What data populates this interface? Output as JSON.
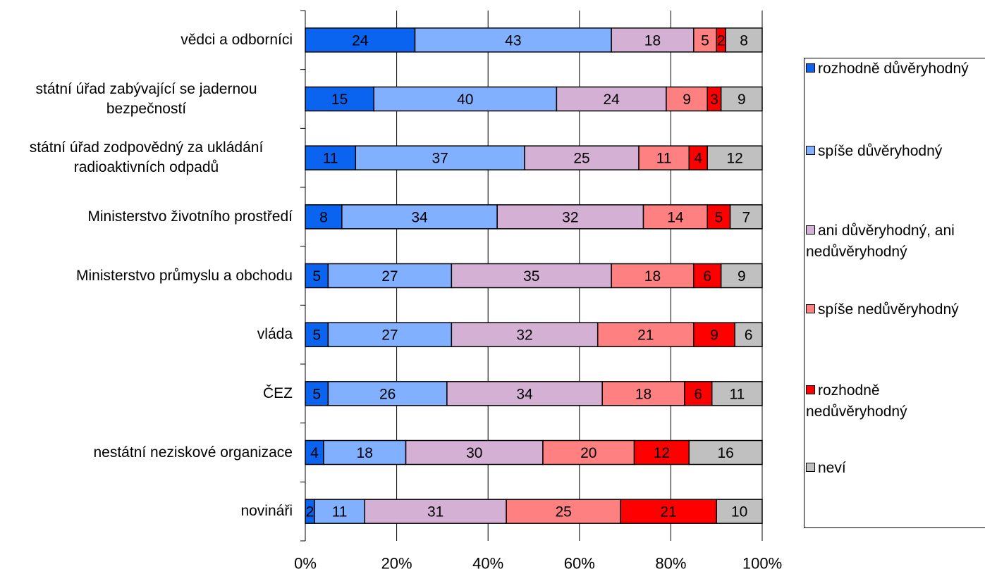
{
  "chart_data": {
    "type": "stacked_bar_horizontal",
    "categories": [
      "vědci a odborníci",
      "státní úřad zabývající se jadernou bezpečností",
      "státní úřad zodpovědný za ukládání radioaktivních odpadů",
      "Ministerstvo životního prostředí",
      "Ministerstvo průmyslu a obchodu",
      "vláda",
      "ČEZ",
      "nestátní neziskové organizace",
      "novináři"
    ],
    "series": [
      {
        "name": "rozhodně důvěryhodný",
        "color": "#0a64f0",
        "values": [
          24,
          15,
          11,
          8,
          5,
          5,
          5,
          4,
          2
        ]
      },
      {
        "name": "spíše důvěryhodný",
        "color": "#80b0ff",
        "values": [
          43,
          40,
          37,
          34,
          27,
          27,
          26,
          18,
          11
        ]
      },
      {
        "name": "ani důvěryhodný, ani nedůvěryhodný",
        "color": "#d4b0d4",
        "values": [
          18,
          24,
          25,
          32,
          35,
          32,
          34,
          30,
          31
        ]
      },
      {
        "name": "spíše nedůvěryhodný",
        "color": "#ff8080",
        "values": [
          5,
          9,
          11,
          14,
          18,
          21,
          18,
          20,
          25
        ]
      },
      {
        "name": "rozhodně nedůvěryhodný",
        "color": "#ff0000",
        "values": [
          2,
          3,
          4,
          5,
          6,
          9,
          6,
          12,
          21
        ]
      },
      {
        "name": "neví",
        "color": "#c0c0c0",
        "values": [
          8,
          9,
          12,
          7,
          9,
          6,
          11,
          16,
          10
        ]
      }
    ],
    "xlim": [
      0,
      100
    ],
    "xticks": [
      {
        "value": 0,
        "label": "0%"
      },
      {
        "value": 20,
        "label": "20%"
      },
      {
        "value": 40,
        "label": "40%"
      },
      {
        "value": 60,
        "label": "60%"
      },
      {
        "value": 80,
        "label": "80%"
      },
      {
        "value": 100,
        "label": "100%"
      }
    ],
    "grid": true,
    "legend": "right"
  }
}
